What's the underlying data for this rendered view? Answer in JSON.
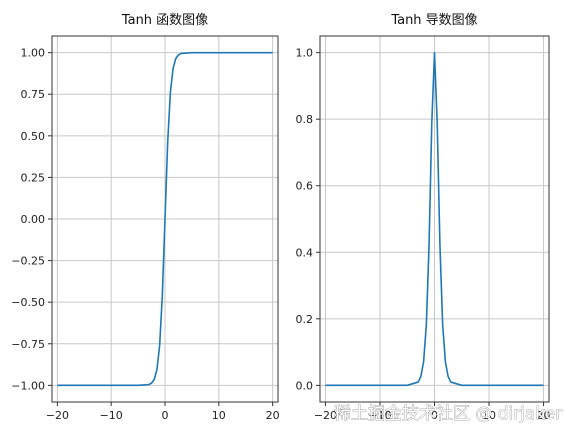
{
  "chart_data": [
    {
      "type": "line",
      "title": "Tanh 函数图像",
      "xlabel": "",
      "ylabel": "",
      "xlim": [
        -21,
        21
      ],
      "ylim": [
        -1.1,
        1.1
      ],
      "xticks": [
        -20,
        -10,
        0,
        10,
        20
      ],
      "xtick_labels": [
        "−20",
        "−10",
        "0",
        "10",
        "20"
      ],
      "yticks": [
        -1.0,
        -0.75,
        -0.5,
        -0.25,
        0.0,
        0.25,
        0.5,
        0.75,
        1.0
      ],
      "ytick_labels": [
        "−1.00",
        "−0.75",
        "−0.50",
        "−0.25",
        "0.00",
        "0.25",
        "0.50",
        "0.75",
        "1.00"
      ],
      "grid": true,
      "color": "#1f77b4",
      "series": [
        {
          "x": [
            -20,
            -10,
            -5,
            -3,
            -2.5,
            -2,
            -1.5,
            -1,
            -0.5,
            0,
            0.5,
            1,
            1.5,
            2,
            2.5,
            3,
            5,
            10,
            20
          ],
          "y": [
            -1.0,
            -1.0,
            -0.9999,
            -0.9951,
            -0.9866,
            -0.964,
            -0.9051,
            -0.7616,
            -0.4621,
            0.0,
            0.4621,
            0.7616,
            0.9051,
            0.964,
            0.9866,
            0.9951,
            0.9999,
            1.0,
            1.0
          ]
        }
      ]
    },
    {
      "type": "line",
      "title": "Tanh 导数图像",
      "xlabel": "",
      "ylabel": "",
      "xlim": [
        -21,
        21
      ],
      "ylim": [
        -0.05,
        1.05
      ],
      "xticks": [
        -20,
        -10,
        0,
        10,
        20
      ],
      "xtick_labels": [
        "−20",
        "−10",
        "0",
        "10",
        "20"
      ],
      "yticks": [
        0.0,
        0.2,
        0.4,
        0.6,
        0.8,
        1.0
      ],
      "ytick_labels": [
        "0.0",
        "0.2",
        "0.4",
        "0.6",
        "0.8",
        "1.0"
      ],
      "grid": true,
      "color": "#1f77b4",
      "series": [
        {
          "x": [
            -20,
            -10,
            -5,
            -3,
            -2.5,
            -2,
            -1.5,
            -1,
            -0.5,
            0,
            0.5,
            1,
            1.5,
            2,
            2.5,
            3,
            5,
            10,
            20
          ],
          "y": [
            0.0,
            0.0,
            0.0002,
            0.0099,
            0.0266,
            0.0707,
            0.1807,
            0.42,
            0.7864,
            1.0,
            0.7864,
            0.42,
            0.1807,
            0.0707,
            0.0266,
            0.0099,
            0.0002,
            0.0,
            0.0
          ]
        }
      ]
    }
  ],
  "watermark": "稀土掘金技术社区 @ dirjaker"
}
